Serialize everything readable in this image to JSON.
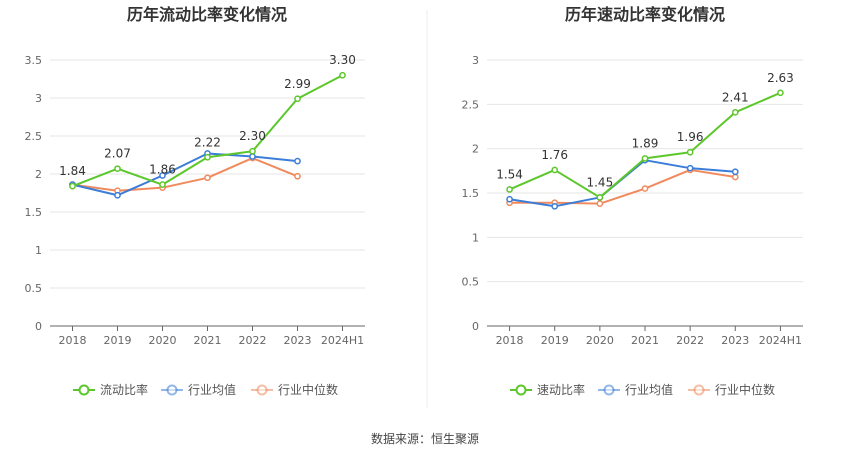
{
  "source": "数据来源：恒生聚源",
  "chart_data": [
    {
      "type": "line",
      "title": "历年流动比率变化情况",
      "categories": [
        "2018",
        "2019",
        "2020",
        "2021",
        "2022",
        "2023",
        "2024H1"
      ],
      "ylim": [
        0,
        3.5
      ],
      "yticks": [
        "0",
        "0.5",
        "1",
        "1.5",
        "2",
        "2.5",
        "3",
        "3.5"
      ],
      "grid": true,
      "legend": "bottom",
      "series": [
        {
          "name": "流动比率",
          "color": "#5cc72a",
          "values": [
            1.84,
            2.07,
            1.86,
            2.22,
            2.3,
            2.99,
            3.3
          ],
          "labels": [
            "1.84",
            "2.07",
            "1.86",
            "2.22",
            "2.30",
            "2.99",
            "3.30"
          ]
        },
        {
          "name": "行业均值",
          "color": "#3b7dd8",
          "values": [
            1.86,
            1.72,
            1.98,
            2.27,
            2.23,
            2.17,
            null
          ]
        },
        {
          "name": "行业中位数",
          "color": "#f08a5d",
          "values": [
            1.86,
            1.78,
            1.82,
            1.95,
            2.21,
            1.97,
            null
          ]
        }
      ]
    },
    {
      "type": "line",
      "title": "历年速动比率变化情况",
      "categories": [
        "2018",
        "2019",
        "2020",
        "2021",
        "2022",
        "2023",
        "2024H1"
      ],
      "ylim": [
        0,
        3
      ],
      "yticks": [
        "0",
        "0.5",
        "1",
        "1.5",
        "2",
        "2.5",
        "3"
      ],
      "grid": true,
      "legend": "bottom",
      "series": [
        {
          "name": "速动比率",
          "color": "#5cc72a",
          "values": [
            1.54,
            1.76,
            1.45,
            1.89,
            1.96,
            2.41,
            2.63
          ],
          "labels": [
            "1.54",
            "1.76",
            "1.45",
            "1.89",
            "1.96",
            "2.41",
            "2.63"
          ]
        },
        {
          "name": "行业均值",
          "color": "#3b7dd8",
          "values": [
            1.43,
            1.35,
            1.45,
            1.87,
            1.78,
            1.74,
            null
          ]
        },
        {
          "name": "行业中位数",
          "color": "#f08a5d",
          "values": [
            1.39,
            1.39,
            1.38,
            1.55,
            1.76,
            1.68,
            null
          ]
        }
      ]
    }
  ]
}
